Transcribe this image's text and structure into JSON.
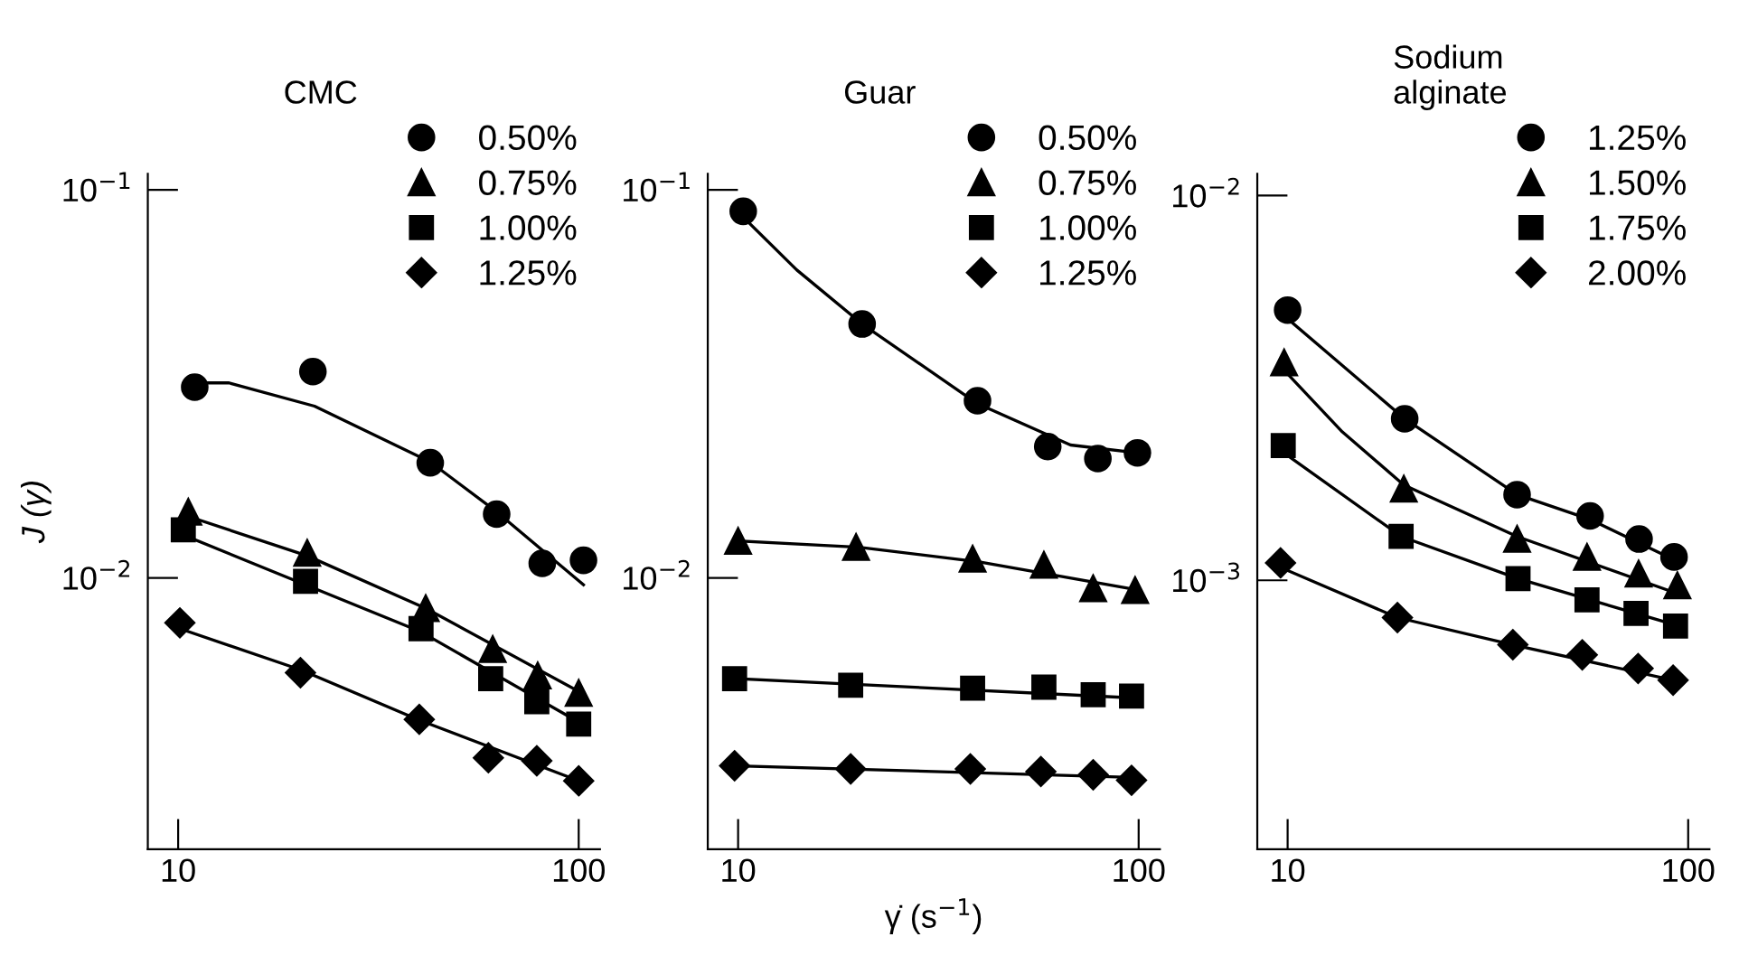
{
  "chart_data": [
    {
      "type": "scatter",
      "title": "CMC",
      "ylabel": "J (γ)",
      "log": "xy",
      "legend": "top right",
      "grid": false,
      "xlim": [
        8.4,
        113
      ],
      "ylim": [
        0.002,
        0.11
      ],
      "xticks": [
        10,
        100
      ],
      "yticks": [
        {
          "value": 0.1,
          "label": "10$^{−1}$"
        },
        {
          "value": 0.01,
          "label": "10$^{−2}$"
        }
      ],
      "series": [
        {
          "name": "0.50%",
          "color": "#000000",
          "marker": "circle",
          "x": [
            11,
            21.7,
            42.6,
            62.4,
            81.1,
            102.8
          ],
          "values": [
            0.031,
            0.034,
            0.0198,
            0.0146,
            0.0109,
            0.0111
          ]
        },
        {
          "name": "0.75%",
          "color": "#000000",
          "marker": "triangle",
          "x": [
            10.6,
            21,
            41.5,
            61,
            79,
            100
          ],
          "values": [
            0.0148,
            0.0116,
            0.00835,
            0.00655,
            0.0056,
            0.00505
          ]
        },
        {
          "name": "1.00%",
          "color": "#000000",
          "marker": "square",
          "x": [
            10.3,
            20.8,
            40.4,
            60.3,
            78.6,
            100
          ],
          "values": [
            0.0133,
            0.0098,
            0.0074,
            0.0055,
            0.0048,
            0.0042
          ]
        },
        {
          "name": "1.25%",
          "color": "#000000",
          "marker": "diamond",
          "x": [
            10.1,
            20.2,
            40,
            59.5,
            78.6,
            100
          ],
          "values": [
            0.00766,
            0.0057,
            0.00432,
            0.00344,
            0.00338,
            0.003
          ]
        },
        {
          "type": "line",
          "color": "#000000",
          "x": [
            11,
            13.4,
            21.9,
            42.6,
            62.4,
            102.8
          ],
          "values": [
            0.0318,
            0.0318,
            0.0277,
            0.0199,
            0.0148,
            0.0096
          ]
        },
        {
          "type": "line",
          "color": "#000000",
          "x": [
            10.6,
            21,
            41.5,
            100
          ],
          "values": [
            0.0144,
            0.0114,
            0.00835,
            0.0051
          ]
        },
        {
          "type": "line",
          "color": "#000000",
          "x": [
            10.3,
            20.8,
            40.4,
            100
          ],
          "values": [
            0.0129,
            0.0096,
            0.00726,
            0.00425
          ]
        },
        {
          "type": "line",
          "color": "#000000",
          "x": [
            10.1,
            20.2,
            40,
            100
          ],
          "values": [
            0.0074,
            0.0058,
            0.0043,
            0.003
          ]
        }
      ]
    },
    {
      "type": "scatter",
      "title": "Guar",
      "xlabel": "γ̇ (s$^{−1}$)",
      "log": "xy",
      "legend": "top right",
      "grid": false,
      "xlim": [
        8.4,
        113
      ],
      "ylim": [
        0.002,
        0.11
      ],
      "xticks": [
        10,
        100
      ],
      "yticks": [
        {
          "value": 0.1,
          "label": "10$^{−1}$"
        },
        {
          "value": 0.01,
          "label": "10$^{−2}$"
        }
      ],
      "series": [
        {
          "name": "0.50%",
          "color": "#000000",
          "marker": "circle",
          "x": [
            10.3,
            20.4,
            39.6,
            59.3,
            79.1,
            99.3
          ],
          "values": [
            0.088,
            0.0451,
            0.0286,
            0.0218,
            0.0203,
            0.021
          ]
        },
        {
          "name": "0.75%",
          "color": "#000000",
          "marker": "triangle",
          "x": [
            10,
            19.7,
            38.5,
            58,
            77,
            98
          ],
          "values": [
            0.01245,
            0.012,
            0.0112,
            0.0108,
            0.0094,
            0.0093
          ]
        },
        {
          "name": "1.00%",
          "color": "#000000",
          "marker": "square",
          "x": [
            9.8,
            19.1,
            38.5,
            58,
            77,
            96
          ],
          "values": [
            0.0055,
            0.00529,
            0.0052,
            0.00523,
            0.005,
            0.00496
          ]
        },
        {
          "name": "1.25%",
          "color": "#000000",
          "marker": "diamond",
          "x": [
            9.8,
            19.1,
            38,
            57,
            77,
            96
          ],
          "values": [
            0.00328,
            0.00322,
            0.00322,
            0.00317,
            0.00311,
            0.00301
          ]
        },
        {
          "type": "line",
          "color": "#000000",
          "x": [
            10.3,
            14,
            20.4,
            39.6,
            67.6,
            99.3
          ],
          "values": [
            0.085,
            0.0622,
            0.0451,
            0.0281,
            0.022,
            0.021
          ]
        },
        {
          "type": "line",
          "color": "#000000",
          "x": [
            10,
            20,
            40,
            100
          ],
          "values": [
            0.01245,
            0.012,
            0.011,
            0.0093
          ]
        },
        {
          "type": "line",
          "color": "#000000",
          "x": [
            10,
            100
          ],
          "values": [
            0.0055,
            0.0049
          ]
        },
        {
          "type": "line",
          "color": "#000000",
          "x": [
            10,
            100
          ],
          "values": [
            0.00328,
            0.00306
          ]
        }
      ]
    },
    {
      "type": "scatter",
      "title": "Sodium\nalginate",
      "log": "xy",
      "legend": "top right",
      "grid": false,
      "xlim": [
        8.4,
        113
      ],
      "ylim": [
        0.0002,
        0.0114
      ],
      "xticks": [
        10,
        100
      ],
      "yticks": [
        {
          "value": 0.01,
          "label": "10$^{−2}$"
        },
        {
          "value": 0.001,
          "label": "10$^{−3}$"
        }
      ],
      "series": [
        {
          "name": "1.25%",
          "color": "#000000",
          "marker": "circle",
          "x": [
            10,
            19.6,
            37.4,
            56.9,
            75.4,
            92.2
          ],
          "values": [
            0.00504,
            0.00263,
            0.00167,
            0.00147,
            0.00128,
            0.00115
          ]
        },
        {
          "name": "1.50%",
          "color": "#000000",
          "marker": "triangle",
          "x": [
            9.8,
            19.5,
            37.4,
            55.9,
            75.2,
            94
          ],
          "values": [
            0.00368,
            0.00173,
            0.00128,
            0.00115,
            0.00104,
            0.00097
          ]
        },
        {
          "name": "1.75%",
          "color": "#000000",
          "marker": "square",
          "x": [
            9.75,
            19.2,
            37.6,
            55.9,
            74.1,
            93
          ],
          "values": [
            0.00224,
            0.0013,
            0.00101,
            0.00089,
            0.00082,
            0.00076
          ]
        },
        {
          "name": "2.00%",
          "color": "#000000",
          "marker": "diamond",
          "x": [
            9.6,
            18.8,
            36.5,
            54.4,
            75,
            91.7
          ],
          "values": [
            0.00111,
            0.0008,
            0.00068,
            0.00064,
            0.00059,
            0.00055
          ]
        },
        {
          "type": "line",
          "color": "#000000",
          "x": [
            10.2,
            19.6,
            37.4,
            56.9,
            92.2
          ],
          "values": [
            0.0047,
            0.00263,
            0.00167,
            0.00144,
            0.00113
          ]
        },
        {
          "type": "line",
          "color": "#000000",
          "x": [
            10,
            13.7,
            19.5,
            37.4,
            95
          ],
          "values": [
            0.00344,
            0.00243,
            0.00177,
            0.0013,
            0.00092
          ]
        },
        {
          "type": "line",
          "color": "#000000",
          "x": [
            10,
            19.2,
            37.6,
            95
          ],
          "values": [
            0.00211,
            0.0013,
            0.00101,
            0.00076
          ]
        },
        {
          "type": "line",
          "color": "#000000",
          "x": [
            9.8,
            18.8,
            36.5,
            91.7
          ],
          "values": [
            0.00107,
            0.0008,
            0.00068,
            0.00055
          ]
        }
      ]
    }
  ]
}
